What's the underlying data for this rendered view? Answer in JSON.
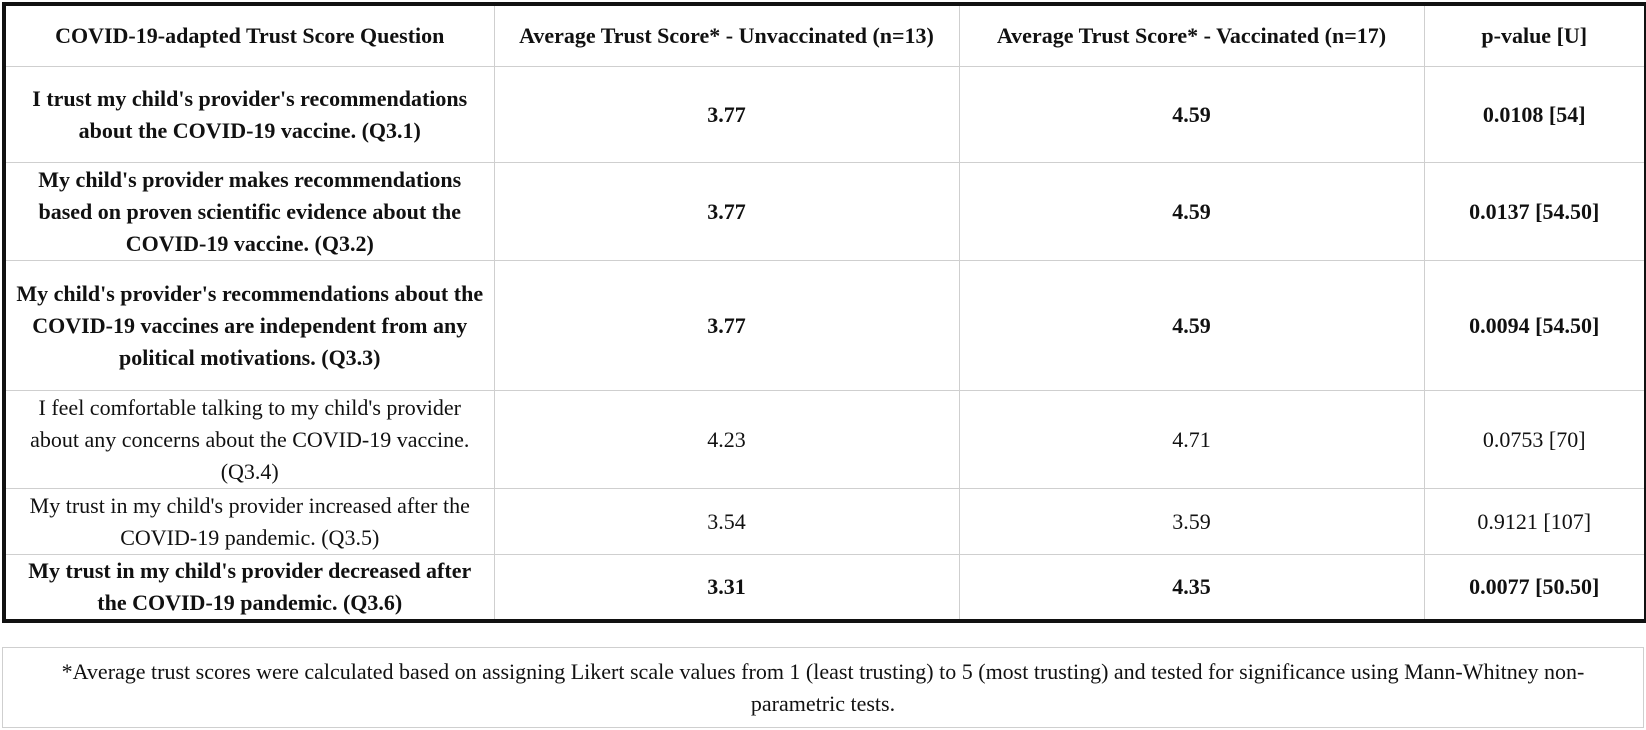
{
  "table": {
    "headers": [
      "COVID-19-adapted Trust Score Question",
      "Average Trust Score* - Unvaccinated (n=13)",
      "Average Trust Score* - Vaccinated (n=17)",
      "p-value [U]"
    ],
    "rows": [
      {
        "question": "I trust my child's provider's recommendations about the COVID-19 vaccine. (Q3.1)",
        "unvaccinated": "3.77",
        "vaccinated": "4.59",
        "p_value": "0.0108 [54]",
        "significant": true
      },
      {
        "question": "My child's provider makes recommendations based on proven scientific evidence about the COVID-19 vaccine. (Q3.2)",
        "unvaccinated": "3.77",
        "vaccinated": "4.59",
        "p_value": "0.0137 [54.50]",
        "significant": true
      },
      {
        "question": "My child's provider's recommendations about the COVID-19 vaccines are independent from any political motivations. (Q3.3)",
        "unvaccinated": "3.77",
        "vaccinated": "4.59",
        "p_value": "0.0094 [54.50]",
        "significant": true
      },
      {
        "question": "I feel comfortable talking to my child's provider about any concerns about the COVID-19 vaccine. (Q3.4)",
        "unvaccinated": "4.23",
        "vaccinated": "4.71",
        "p_value": "0.0753 [70]",
        "significant": false
      },
      {
        "question": "My trust in my child's provider increased after the COVID-19 pandemic. (Q3.5)",
        "unvaccinated": "3.54",
        "vaccinated": "3.59",
        "p_value": "0.9121 [107]",
        "significant": false
      },
      {
        "question": "My trust in my child's provider decreased after the COVID-19 pandemic. (Q3.6)",
        "unvaccinated": "3.31",
        "vaccinated": "4.35",
        "p_value": "0.0077 [50.50]",
        "significant": true
      }
    ]
  },
  "footnote": "*Average trust scores were calculated based on assigning Likert scale values from 1 (least trusting) to 5 (most trusting) and tested for significance using Mann-Whitney non-parametric tests."
}
